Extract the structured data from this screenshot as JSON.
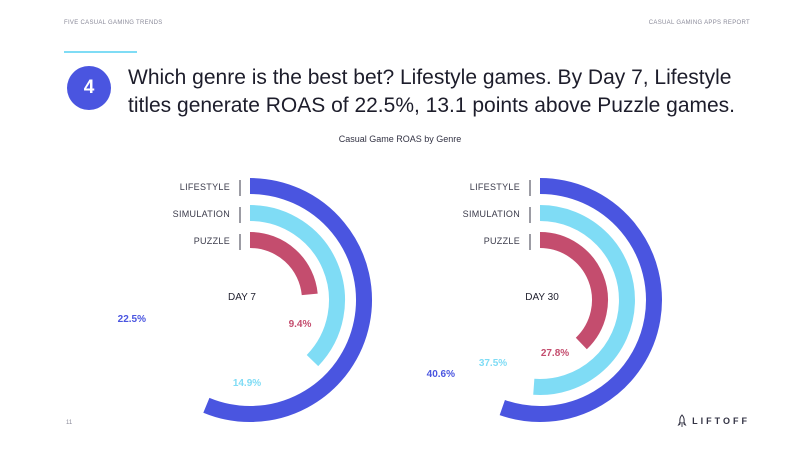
{
  "header": {
    "left": "FIVE CASUAL GAMING TRENDS",
    "right": "CASUAL GAMING APPS REPORT"
  },
  "badge": "4",
  "headline": "Which genre is the best bet? Lifestyle games. By Day 7, Lifestyle titles generate ROAS of 22.5%, 13.1 points above Puzzle games.",
  "page_number": "11",
  "logo": {
    "text": "LIFTOFF",
    "icon": "rocket-icon"
  },
  "colors": {
    "lifestyle": "#4a55e0",
    "simulation": "#7fdcf5",
    "puzzle": "#c44d6e",
    "accent": "#4a55e0"
  },
  "chart_data": [
    {
      "type": "radial-bar",
      "title": "Casual Game ROAS by Genre",
      "label": "DAY 7",
      "categories": [
        "LIFESTYLE",
        "SIMULATION",
        "PUZZLE"
      ],
      "values": [
        22.5,
        14.9,
        9.4
      ],
      "value_labels": [
        "22.5%",
        "14.9%",
        "9.4%"
      ],
      "max": 30
    },
    {
      "type": "radial-bar",
      "label": "DAY 30",
      "categories": [
        "LIFESTYLE",
        "SIMULATION",
        "PUZZLE"
      ],
      "values": [
        40.6,
        37.5,
        27.8
      ],
      "value_labels": [
        "40.6%",
        "37.5%",
        "27.8%"
      ],
      "max": 55
    }
  ]
}
